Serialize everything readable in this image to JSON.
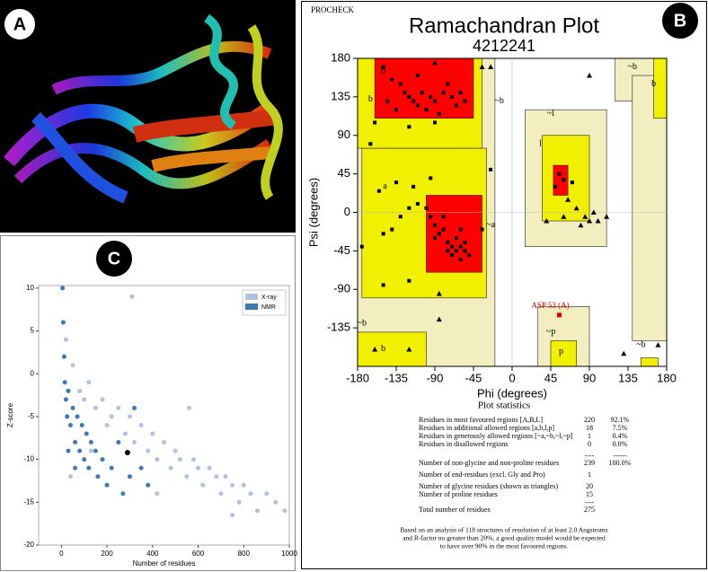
{
  "panels": [
    "A",
    "B",
    "C"
  ],
  "chart_data": [
    {
      "type": "scatter",
      "header": "PROCHECK",
      "title": "Ramachandran Plot",
      "subtitle": "4212241",
      "xlabel": "Phi (degrees)",
      "ylabel": "Psi (degrees)",
      "xlim": [
        -180,
        180
      ],
      "xticks": [
        -180,
        -135,
        -90,
        -45,
        0,
        45,
        90,
        135,
        180
      ],
      "ylim": [
        -180,
        180
      ],
      "yticks": [
        -135,
        -90,
        -45,
        0,
        45,
        90,
        135,
        180
      ],
      "series": [
        {
          "color": "#000000",
          "marker": "square",
          "x": [
            -150,
            -140,
            -130,
            -125,
            -120,
            -115,
            -110,
            -105,
            -100,
            -95,
            -90,
            -85,
            -80,
            -75,
            -70,
            -65,
            -60,
            -135,
            -145,
            -110,
            -160,
            -55,
            -120,
            -90,
            -100,
            -95,
            -90,
            -85,
            -80,
            -75,
            -70,
            -65,
            -60,
            -55,
            -50,
            -65,
            -70,
            -60,
            -75,
            -80,
            -110,
            -120,
            -130,
            -140,
            -150,
            -60,
            -55,
            -135,
            -115,
            -95,
            -155,
            -150,
            -120,
            -90,
            -25,
            -35,
            55,
            60,
            50,
            70,
            -165,
            -175
          ],
          "y": [
            170,
            155,
            150,
            140,
            135,
            130,
            125,
            140,
            120,
            135,
            130,
            115,
            140,
            150,
            135,
            125,
            140,
            120,
            130,
            160,
            105,
            130,
            100,
            105,
            5,
            -5,
            -15,
            -25,
            -20,
            -35,
            -40,
            -45,
            -40,
            -45,
            -50,
            -30,
            -50,
            -55,
            -45,
            -5,
            10,
            5,
            -5,
            -20,
            -25,
            -20,
            -35,
            35,
            30,
            40,
            25,
            -85,
            -80,
            -30,
            50,
            -20,
            45,
            38,
            30,
            35,
            80,
            -40
          ]
        },
        {
          "color": "#000000",
          "marker": "triangle",
          "x": [
            -90,
            -35,
            -25,
            65,
            75,
            85,
            90,
            95,
            100,
            80,
            90,
            -160,
            -120,
            130,
            170,
            -85,
            -85,
            40,
            60,
            110
          ],
          "y": [
            175,
            170,
            170,
            15,
            5,
            -5,
            -10,
            0,
            -10,
            -15,
            160,
            -160,
            -160,
            -165,
            -155,
            -95,
            -125,
            -10,
            -5,
            -5
          ]
        }
      ],
      "highlight": {
        "label": "ASP 53 (A)",
        "x": 55,
        "y": -120,
        "color": "#e00000"
      },
      "annotations": [
        {
          "text": "B",
          "x": -150,
          "y": 165
        },
        {
          "text": "b",
          "x": -165,
          "y": 132
        },
        {
          "text": "~b",
          "x": -15,
          "y": 130
        },
        {
          "text": "a",
          "x": -148,
          "y": 30
        },
        {
          "text": "~a",
          "x": -25,
          "y": -15
        },
        {
          "text": "~l",
          "x": 45,
          "y": 115
        },
        {
          "text": "l",
          "x": 33,
          "y": 80
        },
        {
          "text": "~p",
          "x": 45,
          "y": -140
        },
        {
          "text": "p",
          "x": 57,
          "y": -163
        },
        {
          "text": "b",
          "x": -150,
          "y": -160
        },
        {
          "text": "~b",
          "x": -175,
          "y": -130
        },
        {
          "text": "~b",
          "x": 140,
          "y": 170
        },
        {
          "text": "b",
          "x": 165,
          "y": 150
        },
        {
          "text": "~b",
          "x": 150,
          "y": -155
        }
      ],
      "statistics": {
        "title": "Plot statistics",
        "rows": [
          {
            "label": "Residues in most favoured regions  [A,B,L]",
            "count": 220,
            "percent": "92.1%"
          },
          {
            "label": "Residues in additional allowed regions  [a,b,l,p]",
            "count": 18,
            "percent": "7.5%"
          },
          {
            "label": "Residues in generously allowed regions  [~a,~b,~l,~p]",
            "count": 1,
            "percent": "0.4%"
          },
          {
            "label": "Residues in disallowed regions",
            "count": 0,
            "percent": "0.0%"
          },
          {
            "count": "----",
            "percent": "------"
          },
          {
            "label": "Number of non-glycine and non-proline residues",
            "count": 239,
            "percent": "100.0%"
          },
          {
            "label": "Number of end-residues (excl. Gly and Pro)",
            "count": 1
          },
          {
            "label": "Number of glycine residues (shown as triangles)",
            "count": 20
          },
          {
            "label": "Number of proline residues",
            "count": 15
          },
          {
            "count": "----"
          },
          {
            "label": "Total number of residues",
            "count": 275
          }
        ],
        "note": [
          "Based on an analysis of 118 structures of resolution of at least 2.0 Angstroms",
          "and R-factor no greater than 20%, a good quality model would be expected",
          "to have over 90% in the most favoured regions."
        ]
      }
    },
    {
      "type": "scatter",
      "xlabel": "Number of residues",
      "ylabel": "Z-score",
      "xlim": [
        -100,
        1000
      ],
      "xticks": [
        0,
        200,
        400,
        600,
        800,
        1000
      ],
      "ylim": [
        -20,
        10.3
      ],
      "yticks": [
        -20,
        -15,
        -10,
        -5,
        0,
        5,
        10
      ],
      "legend": "upper right",
      "series": [
        {
          "name": "X-ray",
          "color": "#aec3e0",
          "x": [
            20,
            50,
            80,
            100,
            120,
            150,
            180,
            200,
            220,
            250,
            280,
            300,
            320,
            350,
            380,
            400,
            420,
            450,
            480,
            500,
            520,
            550,
            580,
            600,
            620,
            650,
            680,
            700,
            720,
            750,
            780,
            800,
            830,
            860,
            900,
            940,
            980,
            310,
            560,
            750,
            130,
            40,
            420
          ],
          "y": [
            4,
            1,
            -2,
            -3,
            -1,
            -4,
            -3,
            -6,
            -5,
            -4,
            -7,
            -5,
            -8,
            -6,
            -9,
            -7,
            -10,
            -8,
            -11,
            -9,
            -10,
            -12,
            -10,
            -11,
            -13,
            -11,
            -12,
            -14,
            -12,
            -13,
            -15,
            -13,
            -14,
            -16,
            -14,
            -15,
            -16,
            9,
            -4,
            -16.5,
            -9,
            -12,
            -14
          ]
        },
        {
          "name": "NMR",
          "color": "#3d7ab3",
          "x": [
            5,
            8,
            12,
            15,
            20,
            25,
            30,
            40,
            50,
            60,
            70,
            80,
            90,
            100,
            110,
            120,
            130,
            150,
            160,
            180,
            200,
            220,
            250,
            270,
            300,
            320,
            350,
            380,
            30,
            60
          ],
          "y": [
            10,
            6,
            2,
            -1,
            -3,
            -5,
            -2,
            -6,
            -4,
            -8,
            -5,
            -9,
            -6,
            -10,
            -7,
            -11,
            -8,
            -9,
            -12,
            -10,
            -13,
            -11,
            -8,
            -14,
            -12,
            -4,
            -11,
            -13,
            -9,
            -11
          ]
        }
      ],
      "highlight": {
        "x": 290,
        "y": -9.2,
        "color": "#000000"
      }
    }
  ]
}
